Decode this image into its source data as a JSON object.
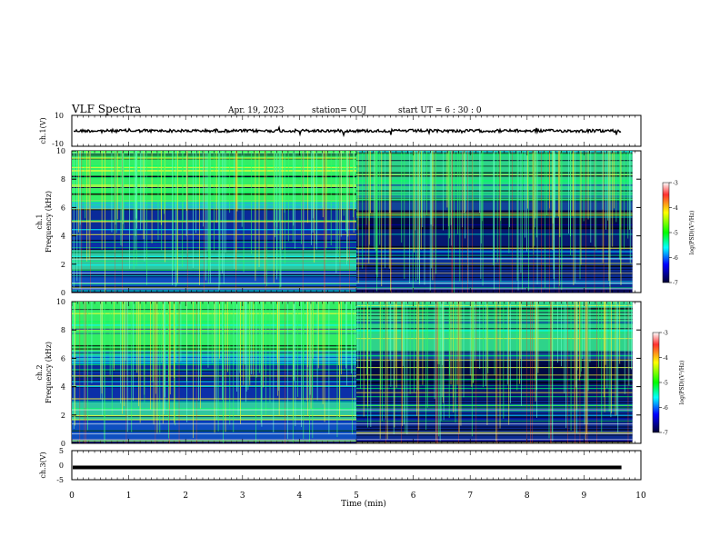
{
  "header": {
    "title": "VLF Spectra",
    "date": "Apr. 19, 2023",
    "station": "station= OUJ",
    "start": "start  UT  =   6  : 30 : 0"
  },
  "colorbar": {
    "label": "log(PSD)(V²/Hz)",
    "ticks": [
      "-3",
      "-4",
      "-5",
      "-6",
      "-7"
    ],
    "colors": [
      "#ffffff",
      "#ff0000",
      "#ffff00",
      "#00ff00",
      "#00ffff",
      "#0000ff",
      "#000033"
    ]
  },
  "chart_data": [
    {
      "type": "line",
      "panel": "ch1-waveform",
      "ylabel": "ch.1(V)",
      "ylim": [
        -10,
        10
      ],
      "yticks": [
        "10",
        "-10"
      ],
      "level": 0,
      "color": "#000000"
    },
    {
      "type": "heatmap",
      "panel": "ch1-spectrogram",
      "ylabel_line1": "ch.1",
      "ylabel_line2": "Frequency (kHz)",
      "ylim": [
        0,
        10
      ],
      "yticks": [
        "0",
        "2",
        "4",
        "6",
        "8",
        "10"
      ],
      "transition_min": 5
    },
    {
      "type": "heatmap",
      "panel": "ch2-spectrogram",
      "ylabel_line1": "ch.2",
      "ylabel_line2": "Frequency (kHz)",
      "ylim": [
        0,
        10
      ],
      "yticks": [
        "0",
        "2",
        "4",
        "6",
        "8",
        "10"
      ],
      "transition_min": 5
    },
    {
      "type": "line",
      "panel": "ch3-waveform",
      "ylabel": "ch.3(V)",
      "ylim": [
        -5,
        5
      ],
      "yticks": [
        "5",
        "0",
        "-5"
      ],
      "level": -0.8,
      "color": "#000000"
    }
  ],
  "xaxis": {
    "label": "Time  (min)",
    "xlim": [
      0,
      10
    ],
    "data_end": 9.85,
    "ticks": [
      "0",
      "1",
      "2",
      "3",
      "4",
      "5",
      "6",
      "7",
      "8",
      "9",
      "10"
    ]
  }
}
